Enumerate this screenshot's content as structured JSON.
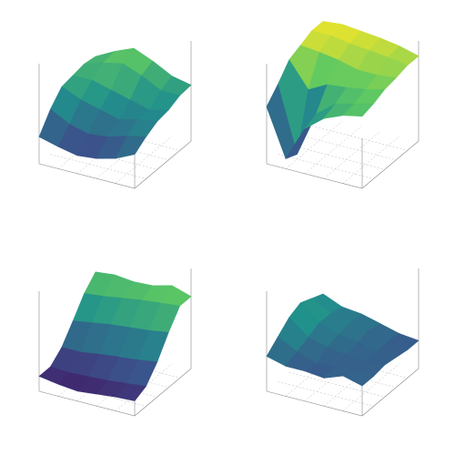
{
  "chart_data": [
    {
      "type": "surface",
      "colormap": "viridis",
      "zlim": [
        0,
        1
      ],
      "z": [
        [
          0.27,
          0.22,
          0.18,
          0.2,
          0.25,
          0.34
        ],
        [
          0.45,
          0.35,
          0.3,
          0.32,
          0.38,
          0.42
        ],
        [
          0.58,
          0.5,
          0.45,
          0.4,
          0.45,
          0.48
        ],
        [
          0.6,
          0.6,
          0.55,
          0.5,
          0.45,
          0.5
        ],
        [
          0.62,
          0.68,
          0.72,
          0.65,
          0.55,
          0.55
        ],
        [
          0.6,
          0.7,
          0.78,
          0.7,
          0.6,
          0.56
        ]
      ]
    },
    {
      "type": "surface",
      "colormap": "viridis",
      "zlim": [
        0,
        1
      ],
      "z": [
        [
          0.57,
          0.1,
          0.45,
          0.6,
          0.68,
          0.72
        ],
        [
          0.7,
          0.05,
          0.5,
          0.65,
          0.7,
          0.75
        ],
        [
          0.85,
          0.6,
          0.7,
          0.72,
          0.75,
          0.8
        ],
        [
          0.9,
          0.88,
          0.85,
          0.8,
          0.8,
          0.82
        ],
        [
          0.95,
          0.95,
          0.92,
          0.9,
          0.88,
          0.85
        ],
        [
          0.95,
          0.97,
          0.95,
          0.93,
          0.9,
          0.85
        ]
      ]
    },
    {
      "type": "surface",
      "colormap": "viridis",
      "zlim": [
        0,
        1
      ],
      "z": [
        [
          0.15,
          0.12,
          0.1,
          0.12,
          0.14,
          0.15
        ],
        [
          0.15,
          0.14,
          0.15,
          0.16,
          0.18,
          0.2
        ],
        [
          0.25,
          0.25,
          0.28,
          0.3,
          0.32,
          0.35
        ],
        [
          0.42,
          0.45,
          0.48,
          0.5,
          0.52,
          0.55
        ],
        [
          0.6,
          0.62,
          0.65,
          0.68,
          0.7,
          0.72
        ],
        [
          0.72,
          0.74,
          0.72,
          0.73,
          0.78,
          0.72
        ]
      ]
    },
    {
      "type": "surface",
      "colormap": "viridis",
      "zlim": [
        0,
        1
      ],
      "z": [
        [
          0.35,
          0.3,
          0.3,
          0.28,
          0.35,
          0.3
        ],
        [
          0.45,
          0.35,
          0.28,
          0.3,
          0.32,
          0.3
        ],
        [
          0.55,
          0.4,
          0.35,
          0.32,
          0.3,
          0.32
        ],
        [
          0.6,
          0.45,
          0.38,
          0.35,
          0.3,
          0.3
        ],
        [
          0.55,
          0.45,
          0.4,
          0.38,
          0.32,
          0.28
        ],
        [
          0.5,
          0.42,
          0.4,
          0.35,
          0.3,
          0.28
        ]
      ]
    }
  ]
}
